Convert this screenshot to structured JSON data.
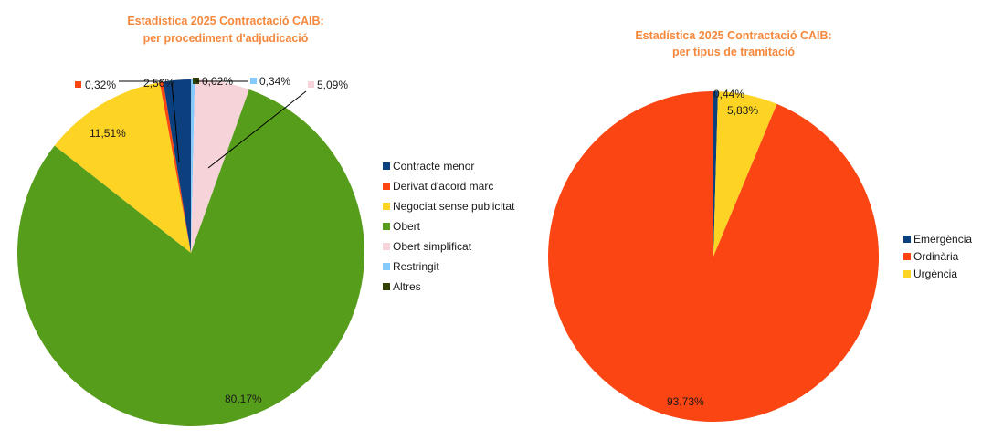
{
  "chart_data": [
    {
      "type": "pie",
      "title": "Estadística 2025 Contractació CAIB:",
      "subtitle": "per procediment d'adjudicació",
      "slices": [
        {
          "name": "Contracte menor",
          "value": 2.56,
          "label": "2,56%",
          "color": "#0b3f7e"
        },
        {
          "name": "Derivat d'acord marc",
          "value": 0.32,
          "label": "0,32%",
          "color": "#fb4512"
        },
        {
          "name": "Negociat sense publicitat",
          "value": 11.51,
          "label": "11,51%",
          "color": "#fdd324"
        },
        {
          "name": "Obert",
          "value": 80.17,
          "label": "80,17%",
          "color": "#579d1c"
        },
        {
          "name": "Obert simplificat",
          "value": 5.09,
          "label": "5,09%",
          "color": "#f6d3d8"
        },
        {
          "name": "Restringit",
          "value": 0.34,
          "label": "0,34%",
          "color": "#83caff"
        },
        {
          "name": "Altres",
          "value": 0.02,
          "label": "0,02%",
          "color": "#314004"
        }
      ],
      "legend": "right"
    },
    {
      "type": "pie",
      "title": "Estadística 2025 Contractació CAIB:",
      "subtitle": "per tipus de tramitació",
      "slices": [
        {
          "name": "Emergència",
          "value": 0.44,
          "label": "0,44%",
          "color": "#0b3f7e"
        },
        {
          "name": "Ordinària",
          "value": 93.73,
          "label": "93,73%",
          "color": "#fb4512"
        },
        {
          "name": "Urgència",
          "value": 5.83,
          "label": "5,83%",
          "color": "#fdd324"
        }
      ],
      "legend": "right"
    }
  ]
}
